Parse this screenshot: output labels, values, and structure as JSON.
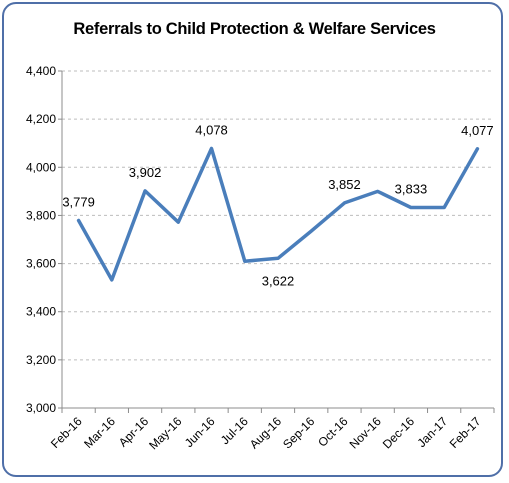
{
  "chart_data": {
    "type": "line",
    "title": "Referrals to Child Protection & Welfare Services",
    "categories": [
      "Feb-16",
      "Mar-16",
      "Apr-16",
      "May-16",
      "Jun-16",
      "Jul-16",
      "Aug-16",
      "Sep-16",
      "Oct-16",
      "Nov-16",
      "Dec-16",
      "Jan-17",
      "Feb-17"
    ],
    "series": [
      {
        "values": [
          3779,
          3532,
          3902,
          3772,
          4078,
          3610,
          3622,
          3735,
          3852,
          3900,
          3833,
          3833,
          4077
        ]
      }
    ],
    "data_labels": [
      {
        "index": 0,
        "text": "3,779",
        "pos": "above"
      },
      {
        "index": 2,
        "text": "3,902",
        "pos": "above"
      },
      {
        "index": 4,
        "text": "4,078",
        "pos": "above"
      },
      {
        "index": 6,
        "text": "3,622",
        "pos": "below"
      },
      {
        "index": 8,
        "text": "3,852",
        "pos": "above"
      },
      {
        "index": 10,
        "text": "3,833",
        "pos": "above"
      },
      {
        "index": 12,
        "text": "4,077",
        "pos": "above"
      }
    ],
    "ylim": [
      3000,
      4400
    ],
    "yticks": [
      3000,
      3200,
      3400,
      3600,
      3800,
      4000,
      4200,
      4400
    ],
    "ytick_labels": [
      "3,000",
      "3,200",
      "3,400",
      "3,600",
      "3,800",
      "4,000",
      "4,200",
      "4,400"
    ],
    "xlabel": "",
    "ylabel": "",
    "grid": true,
    "legend": "none",
    "line_color": "#4a7ebb"
  }
}
